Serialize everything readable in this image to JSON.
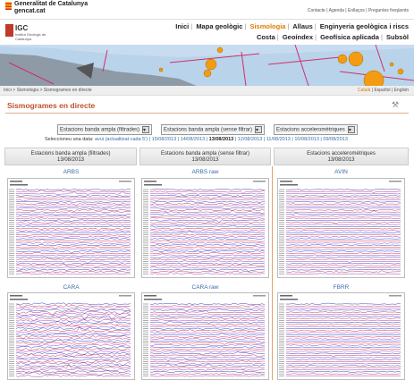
{
  "header": {
    "brand": "Generalitat de Catalunya",
    "site": "gencat.cat",
    "links": [
      "Contacte",
      "Agenda",
      "Enllaços",
      "Preguntes freqüents"
    ]
  },
  "institute": {
    "logo": "IGC",
    "name": "Institut Geològic de Catalunya"
  },
  "nav": [
    "Inici",
    "Mapa geològic",
    "Sismologia",
    "Allaus",
    "Enginyeria geològica i riscs",
    "Costa",
    "Geoíndex",
    "Geofísica aplicada",
    "Subsòl"
  ],
  "breadcrumb": [
    "Inici",
    "Sismologia",
    "Sismogrames en directe"
  ],
  "languages": [
    "Català",
    "Español",
    "English"
  ],
  "page_title": "Sismogrames en directe",
  "selectors": [
    "Estacions banda ampla (filtrades)",
    "Estacions banda ampla (sense filtrar)",
    "Estacions acceleromètriques"
  ],
  "date_prompt": "Seleccioneu una data:",
  "dates": [
    "avui (actualitzat cada 5')",
    "15/08/2013",
    "14/08/2013",
    "13/08/2013",
    "12/08/2013",
    "11/08/2013",
    "10/08/2013",
    "09/08/2013"
  ],
  "columns": [
    {
      "title": "Estacions banda ampla (filtrades)",
      "date": "13/08/2013"
    },
    {
      "title": "Estacions banda ampla (sense filtrar)",
      "date": "13/08/2013"
    },
    {
      "title": "Estacions acceleromètriques",
      "date": "13/08/2013"
    }
  ],
  "stations": [
    [
      "ARBS",
      "ARBS raw",
      "AVIN"
    ],
    [
      "CARA",
      "CARA raw",
      "FBRR"
    ]
  ]
}
